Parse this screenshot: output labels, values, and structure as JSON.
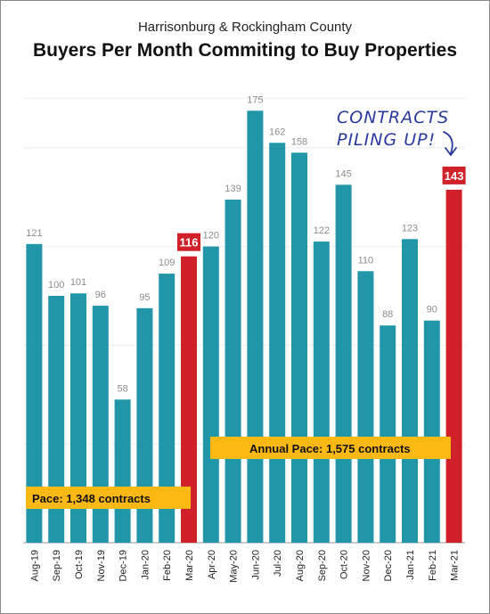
{
  "header": {
    "subtitle": "Harrisonburg & Rockingham County",
    "title": "Buyers Per Month Commiting to Buy Properties"
  },
  "annotations": {
    "pace_label": "Pace: 1,348 contracts",
    "annual_pace_label": "Annual Pace: 1,575 contracts",
    "handwritten_line1": "CONTRACTS",
    "handwritten_line2": "PILING UP!"
  },
  "colors": {
    "bar": "#2196a9",
    "highlight": "#d0202a",
    "pace_box": "#fdb913",
    "value_text": "#8c8c8c",
    "handwriting": "#2b3a9e"
  },
  "chart_data": {
    "type": "bar",
    "title": "Buyers Per Month Commiting to Buy Properties",
    "subtitle": "Harrisonburg & Rockingham County",
    "categories": [
      "Aug-19",
      "Sep-19",
      "Oct-19",
      "Nov-19",
      "Dec-19",
      "Jan-20",
      "Feb-20",
      "Mar-20",
      "Apr-20",
      "May-20",
      "Jun-20",
      "Jul-20",
      "Aug-20",
      "Sep-20",
      "Oct-20",
      "Nov-20",
      "Dec-20",
      "Jan-21",
      "Feb-21",
      "Mar-21"
    ],
    "values": [
      121,
      100,
      101,
      96,
      58,
      95,
      109,
      116,
      120,
      139,
      175,
      162,
      158,
      122,
      145,
      110,
      88,
      123,
      90,
      143
    ],
    "highlighted": [
      "Mar-20",
      "Mar-21"
    ],
    "ylim": [
      0,
      200
    ],
    "grid": true,
    "xlabel": "",
    "ylabel": ""
  }
}
